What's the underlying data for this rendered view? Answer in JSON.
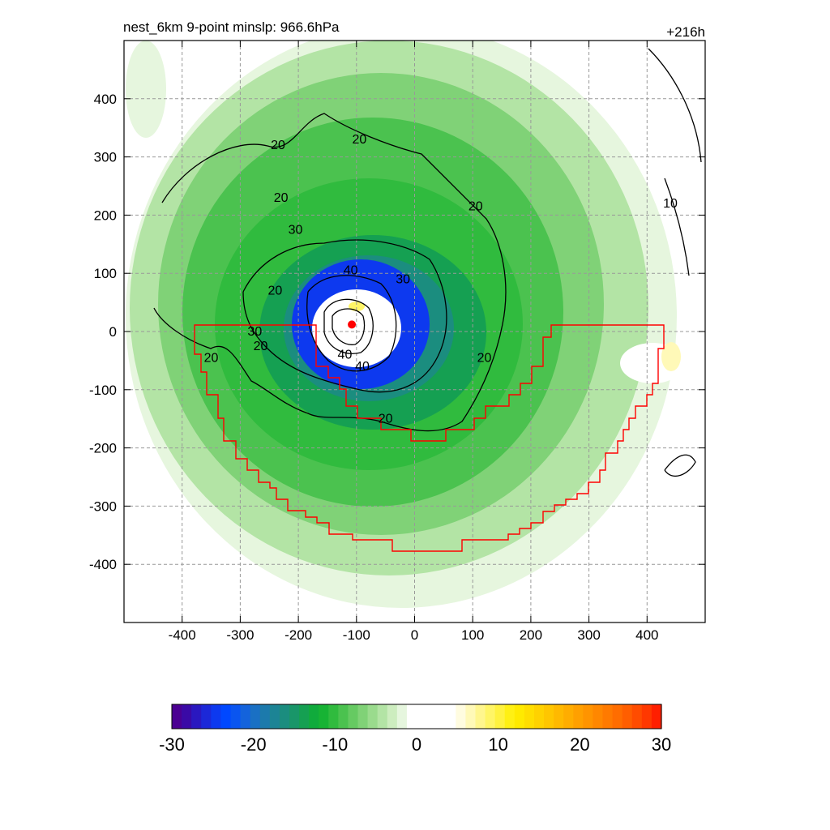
{
  "chart_data": {
    "type": "heatmap",
    "title_left": "nest_6km  9-point minslp: 966.6hPa",
    "title_right": "+216h",
    "x_range": [
      -500,
      500
    ],
    "y_range": [
      -500,
      500
    ],
    "x_ticks": [
      -400,
      -300,
      -200,
      -100,
      0,
      100,
      200,
      300,
      400
    ],
    "y_ticks": [
      400,
      300,
      200,
      100,
      0,
      -100,
      -200,
      -300,
      -400
    ],
    "grid": true,
    "storm_center": [
      -108,
      12
    ],
    "contour_labels": [
      {
        "text": "20",
        "x": -230,
        "y": 230
      },
      {
        "text": "20",
        "x": -240,
        "y": 70
      },
      {
        "text": "20",
        "x": -350,
        "y": -45
      },
      {
        "text": "20",
        "x": -235,
        "y": 320
      },
      {
        "text": "20",
        "x": -95,
        "y": 330
      },
      {
        "text": "20",
        "x": 105,
        "y": 215
      },
      {
        "text": "20",
        "x": 120,
        "y": -45
      },
      {
        "text": "20",
        "x": -50,
        "y": -150
      },
      {
        "text": "10",
        "x": 440,
        "y": 220
      },
      {
        "text": "30",
        "x": -205,
        "y": 175
      },
      {
        "text": "30",
        "x": -20,
        "y": 90
      },
      {
        "text": "30",
        "x": -275,
        "y": 0
      },
      {
        "text": "20",
        "x": -265,
        "y": -25
      },
      {
        "text": "40",
        "x": -110,
        "y": 105
      },
      {
        "text": "40",
        "x": -120,
        "y": -40
      },
      {
        "text": "40",
        "x": -90,
        "y": -60
      }
    ],
    "colorbar": {
      "min": -30,
      "max": 30,
      "ticks": [
        -30,
        -20,
        -10,
        0,
        10,
        20,
        30
      ],
      "colors": [
        "#4b0092",
        "#3a0aa6",
        "#2a18c0",
        "#1c28d8",
        "#0d39ef",
        "#0048ff",
        "#0a55f0",
        "#1463dc",
        "#1a70c4",
        "#1c7aac",
        "#1c8495",
        "#1b8d7f",
        "#199669",
        "#15a052",
        "#10ab3c",
        "#17b334",
        "#30bb3e",
        "#4bc24f",
        "#66ca62",
        "#80d277",
        "#9adb8d",
        "#b3e4a5",
        "#cdedbf",
        "#e6f6de",
        "#ffffff",
        "#ffffff",
        "#ffffff",
        "#ffffff",
        "#ffffff",
        "#fffce0",
        "#fff9b8",
        "#fff68e",
        "#fff566",
        "#fff23f",
        "#fff014",
        "#ffea00",
        "#ffde00",
        "#ffd200",
        "#ffc600",
        "#ffb900",
        "#ffad00",
        "#ffa000",
        "#ff9400",
        "#ff8700",
        "#ff7a00",
        "#ff6d00",
        "#ff5e00",
        "#ff4c00",
        "#ff3800",
        "#ff1f00"
      ]
    },
    "boundary_color": "#ff0000"
  }
}
